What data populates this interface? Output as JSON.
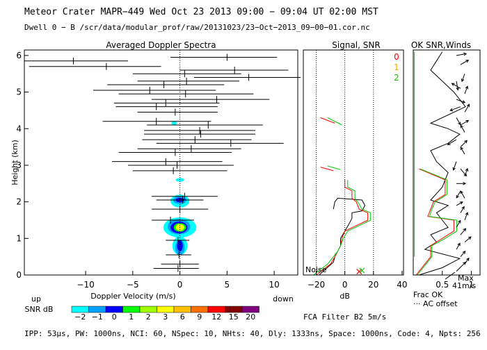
{
  "header": {
    "line1": "Meteor Crater  MAPR−449  Wed Oct 23 2013 09:00 − 09:04 UT 02:00 MST",
    "line2": "Dwell  0 −  B   /scr/data/modular_prof/raw/20131023/23−Oct−2013_09−00−01.cor.nc"
  },
  "footer": {
    "params": "IPP: 53μs, PW: 1000ns, NCI: 60, NSpec: 10, NHts: 40, Dly: 1333ns, Space: 1000ns, Code: 4, Npts: 256",
    "filter": "FCA Filter B2  5m/s"
  },
  "snr_legend": {
    "label_up": "up",
    "label_snr": "SNR dB",
    "label_down": "down",
    "levels": [
      {
        "value": "−2",
        "color": "#00ffff"
      },
      {
        "value": "−1",
        "color": "#00a0ff"
      },
      {
        "value": "0",
        "color": "#0000ff"
      },
      {
        "value": "1",
        "color": "#00ff00"
      },
      {
        "value": "2",
        "color": "#a0ff00"
      },
      {
        "value": "3",
        "color": "#ffff00"
      },
      {
        "value": "6",
        "color": "#ffc000"
      },
      {
        "value": "9",
        "color": "#ff7000"
      },
      {
        "value": "12",
        "color": "#ff0000"
      },
      {
        "value": "15",
        "color": "#800000"
      },
      {
        "value": "20",
        "color": "#800080"
      }
    ]
  },
  "chart_data": [
    {
      "type": "heatmap",
      "title": "Averaged Doppler Spectra",
      "xlabel": "Doppler Velocity (m/s)",
      "ylabel": "Height (km)",
      "xlim": [
        -16.5,
        12.5
      ],
      "ylim": [
        0,
        6.15
      ],
      "xticks": [
        -10,
        -5,
        0,
        5,
        10
      ],
      "yticks": [
        0,
        1,
        2,
        3,
        4,
        5,
        6
      ],
      "vertical_lines": [
        0
      ],
      "velocity_bars": [
        {
          "h": 5.95,
          "center": 5.0,
          "lo": -1.0,
          "hi": 10.3
        },
        {
          "h": 5.85,
          "center": -11.3,
          "lo": -16.5,
          "hi": -5.5
        },
        {
          "h": 5.7,
          "center": -7.8,
          "lo": -16.0,
          "hi": -2.0
        },
        {
          "h": 5.6,
          "center": 5.8,
          "lo": 0.0,
          "hi": 11.5
        },
        {
          "h": 5.5,
          "center": 0.5,
          "lo": -5.0,
          "hi": 6.5
        },
        {
          "h": 5.4,
          "center": 7.3,
          "lo": 1.5,
          "hi": 12.8
        },
        {
          "h": 5.3,
          "center": 0.7,
          "lo": -4.5,
          "hi": 6.3
        },
        {
          "h": 5.2,
          "center": -1.7,
          "lo": -7.7,
          "hi": 4.7
        },
        {
          "h": 5.05,
          "center": -3.2,
          "lo": -9.2,
          "hi": 3.8
        },
        {
          "h": 4.95,
          "center": 0.6,
          "lo": -6.5,
          "hi": 7.8
        },
        {
          "h": 4.8,
          "center": 3.9,
          "lo": -3.0,
          "hi": 9.5
        },
        {
          "h": 4.7,
          "center": -1.5,
          "lo": -7.0,
          "hi": 4.2
        },
        {
          "h": 4.6,
          "center": -2.5,
          "lo": -6.8,
          "hi": 4.0
        },
        {
          "h": 4.45,
          "center": -0.5,
          "lo": -4.5,
          "hi": 4.0
        },
        {
          "h": 4.2,
          "center": -2.5,
          "lo": -8.2,
          "hi": 3.3
        },
        {
          "h": 4.1,
          "center": 3.0,
          "lo": -3.5,
          "hi": 8.8
        },
        {
          "h": 3.95,
          "center": 2.1,
          "lo": -3.8,
          "hi": 8.0
        },
        {
          "h": 3.85,
          "center": 2.2,
          "lo": -3.8,
          "hi": 8.0
        },
        {
          "h": 3.7,
          "center": 1.6,
          "lo": -4.0,
          "hi": 7.6
        },
        {
          "h": 3.6,
          "center": 5.4,
          "lo": -2.5,
          "hi": 11.0
        },
        {
          "h": 3.45,
          "center": 1.2,
          "lo": -4.5,
          "hi": 6.5
        },
        {
          "h": 3.35,
          "center": -0.5,
          "lo": -6.5,
          "hi": 5.5
        },
        {
          "h": 3.1,
          "center": -1.5,
          "lo": -7.2,
          "hi": 4.5
        },
        {
          "h": 3.0,
          "center": -0.3,
          "lo": -5.5,
          "hi": 5.7
        },
        {
          "h": 2.85,
          "center": -0.7,
          "lo": -5.0,
          "hi": 5.0
        },
        {
          "h": 2.15,
          "center": 0.5,
          "lo": -3.0,
          "hi": 4.0
        },
        {
          "h": 2.05,
          "center": 0.3,
          "lo": -2.5,
          "hi": 2.5
        },
        {
          "h": 1.8,
          "center": 0.0,
          "lo": -3.0,
          "hi": 3.0
        },
        {
          "h": 1.5,
          "center": -1.0,
          "lo": -3.0,
          "hi": 1.5
        },
        {
          "h": 0.95,
          "center": -0.2,
          "lo": -1.5,
          "hi": 1.0
        },
        {
          "h": 0.55,
          "center": -0.1,
          "lo": -1.5,
          "hi": 1.2
        },
        {
          "h": 0.3,
          "center": 0.0,
          "lo": -2.0,
          "hi": 2.0
        },
        {
          "h": 0.18,
          "center": -0.2,
          "lo": -2.8,
          "hi": 2.0
        }
      ],
      "snr_blobs": [
        {
          "v": 0.0,
          "h": 1.3,
          "dv": 3.5,
          "dh": 0.55,
          "level": "-2"
        },
        {
          "v": -0.1,
          "h": 1.32,
          "dv": 2.4,
          "dh": 0.42,
          "level": "-1"
        },
        {
          "v": -0.1,
          "h": 1.3,
          "dv": 1.8,
          "dh": 0.32,
          "level": "0"
        },
        {
          "v": 0.0,
          "h": 1.3,
          "dv": 1.3,
          "dh": 0.24,
          "level": "1"
        },
        {
          "v": 0.0,
          "h": 1.3,
          "dv": 0.9,
          "dh": 0.18,
          "level": "3"
        },
        {
          "v": 0.0,
          "h": 2.02,
          "dv": 2.0,
          "dh": 0.35,
          "level": "-2"
        },
        {
          "v": 0.0,
          "h": 2.05,
          "dv": 1.4,
          "dh": 0.22,
          "level": "-1"
        },
        {
          "v": 0.0,
          "h": 2.05,
          "dv": 0.9,
          "dh": 0.12,
          "level": "0"
        },
        {
          "v": 0.0,
          "h": 0.8,
          "dv": 1.6,
          "dh": 0.5,
          "level": "-2"
        },
        {
          "v": 0.0,
          "h": 0.75,
          "dv": 1.0,
          "dh": 0.42,
          "level": "-1"
        },
        {
          "v": 0.0,
          "h": 0.8,
          "dv": 0.6,
          "dh": 0.3,
          "level": "0"
        },
        {
          "v": 0.0,
          "h": 2.6,
          "dv": 0.9,
          "dh": 0.1,
          "level": "-2"
        },
        {
          "v": -0.6,
          "h": 4.15,
          "dv": 0.6,
          "dh": 0.1,
          "level": "-2"
        }
      ]
    },
    {
      "type": "line",
      "title": "Signal, SNR",
      "xlabel": "dB",
      "xlim": [
        -29,
        41
      ],
      "ylim": [
        0,
        6.15
      ],
      "xticks": [
        -20,
        0,
        20,
        40
      ],
      "dotted_lines": [
        -20,
        0,
        20
      ],
      "noise_label": "Noise",
      "series": [
        {
          "name": "black",
          "color": "#000000",
          "x": [
            -18,
            -8,
            -7,
            -3,
            -3,
            0,
            3,
            5,
            5,
            12,
            14,
            12,
            -5,
            -7,
            -8
          ],
          "h": [
            0.0,
            0.35,
            0.5,
            0.8,
            1.0,
            1.2,
            1.4,
            1.55,
            1.7,
            1.75,
            1.9,
            2.05,
            2.1,
            2.0,
            1.8
          ]
        },
        {
          "name": "red",
          "color": "#ff0000",
          "x": [
            -20,
            -10,
            -7,
            -5,
            -3,
            -2,
            0,
            8,
            16,
            16,
            10,
            8,
            5,
            5,
            0,
            0
          ],
          "h": [
            0.0,
            0.3,
            0.5,
            0.65,
            0.8,
            1.0,
            1.2,
            1.35,
            1.5,
            1.7,
            1.8,
            2.0,
            2.1,
            2.3,
            2.4,
            2.6
          ]
        },
        {
          "name": "green",
          "color": "#00cc00",
          "x": [
            -22,
            -12,
            -8,
            -5,
            -3,
            -1,
            2,
            10,
            18,
            18,
            12,
            9,
            7,
            7,
            2,
            2
          ],
          "h": [
            0.0,
            0.3,
            0.5,
            0.65,
            0.8,
            1.0,
            1.2,
            1.35,
            1.5,
            1.7,
            1.8,
            2.0,
            2.1,
            2.3,
            2.4,
            2.6
          ]
        },
        {
          "name": "seg-red-4",
          "color": "#ff0000",
          "x": [
            -17,
            -7
          ],
          "h": [
            4.3,
            4.15
          ]
        },
        {
          "name": "seg-green-4",
          "color": "#00cc00",
          "x": [
            -12,
            -2
          ],
          "h": [
            4.3,
            4.1
          ]
        },
        {
          "name": "seg-red-3",
          "color": "#ff0000",
          "x": [
            -17,
            -8
          ],
          "h": [
            2.95,
            2.85
          ]
        },
        {
          "name": "seg-green-3",
          "color": "#00cc00",
          "x": [
            -12,
            -3
          ],
          "h": [
            2.98,
            2.88
          ]
        }
      ],
      "markers": [
        {
          "x": 10,
          "h": 0.05,
          "color": "#ff0000",
          "label": "×"
        },
        {
          "x": 12,
          "h": 0.08,
          "color": "#00cc00",
          "label": "×"
        }
      ]
    },
    {
      "type": "line",
      "title": "OK SNR,Winds",
      "xlabel": "Frac OK",
      "xlim": [
        0,
        1.15
      ],
      "ylim": [
        0,
        6.15
      ],
      "xticks": [
        0.5,
        1
      ],
      "xticklabels": [
        "0.5",
        "1"
      ],
      "legend": [
        {
          "label": "0",
          "color": "#ff0000"
        },
        {
          "label": "1",
          "color": "#ffa500"
        },
        {
          "label": "2",
          "color": "#00cc00"
        }
      ],
      "ac_offset_label": "··· AC offset",
      "max_label": "Max",
      "max_value_label": "41m/s",
      "series": [
        {
          "name": "frac-ok",
          "color": "#000000",
          "x": [
            0.1,
            0.5,
            0.8,
            0.2,
            0.4,
            0.3,
            0.6,
            0.5,
            0.4,
            0.6,
            0.3,
            0.5,
            0.6,
            0.4,
            0.3,
            0.6,
            0.8,
            0.6,
            0.3,
            0.9,
            0.7,
            0.5,
            0.3,
            0.4,
            0.5
          ],
          "h": [
            0.0,
            0.2,
            0.45,
            0.7,
            0.9,
            1.1,
            1.3,
            1.5,
            1.7,
            1.9,
            2.05,
            2.4,
            2.8,
            3.1,
            3.4,
            3.6,
            3.85,
            4.0,
            4.15,
            4.6,
            5.0,
            5.3,
            5.6,
            5.85,
            6.1
          ]
        },
        {
          "name": "frac-0",
          "color": "#ff0000",
          "x": [
            0.05,
            0.2,
            0.3,
            0.3,
            0.5,
            0.7,
            0.7,
            0.25,
            0.3,
            0.35,
            0.55,
            0.55,
            0.1
          ],
          "h": [
            0.0,
            0.3,
            0.5,
            0.8,
            1.0,
            1.2,
            1.5,
            1.6,
            1.8,
            2.0,
            2.2,
            2.6,
            2.9
          ]
        },
        {
          "name": "frac-2",
          "color": "#00cc00",
          "x": [
            0.07,
            0.22,
            0.32,
            0.32,
            0.55,
            0.75,
            0.75,
            0.28,
            0.32,
            0.38,
            0.58,
            0.58,
            0.12
          ],
          "h": [
            0.0,
            0.3,
            0.5,
            0.8,
            1.0,
            1.2,
            1.5,
            1.6,
            1.8,
            2.0,
            2.2,
            2.6,
            2.9
          ]
        }
      ],
      "green_baseline": {
        "x": 0.02,
        "h": [
          0.5,
          6.1
        ]
      },
      "wind_barbs": [
        {
          "h": 6.0,
          "dir": 80,
          "len": 0.6
        },
        {
          "h": 5.75,
          "dir": 60,
          "len": 0.5
        },
        {
          "h": 5.5,
          "dir": 200,
          "len": 0.4
        },
        {
          "h": 5.3,
          "dir": 170,
          "len": 0.5
        },
        {
          "h": 5.1,
          "dir": 300,
          "len": 0.6
        },
        {
          "h": 4.95,
          "dir": 20,
          "len": 0.4
        },
        {
          "h": 4.8,
          "dir": 110,
          "len": 0.5
        },
        {
          "h": 4.6,
          "dir": 250,
          "len": 0.7
        },
        {
          "h": 4.45,
          "dir": 30,
          "len": 0.5
        },
        {
          "h": 4.3,
          "dir": 150,
          "len": 0.4
        },
        {
          "h": 4.1,
          "dir": 60,
          "len": 0.5
        },
        {
          "h": 3.9,
          "dir": 330,
          "len": 0.4
        },
        {
          "h": 3.7,
          "dir": 240,
          "len": 0.6
        },
        {
          "h": 3.5,
          "dir": 45,
          "len": 0.5
        },
        {
          "h": 3.3,
          "dir": 330,
          "len": 0.4
        },
        {
          "h": 3.1,
          "dir": 200,
          "len": 0.5
        },
        {
          "h": 2.9,
          "dir": 140,
          "len": 0.5
        },
        {
          "h": 2.7,
          "dir": 20,
          "len": 0.4
        },
        {
          "h": 2.5,
          "dir": 90,
          "len": 0.5
        },
        {
          "h": 2.3,
          "dir": 210,
          "len": 0.4
        },
        {
          "h": 2.1,
          "dir": 330,
          "len": 0.4
        },
        {
          "h": 1.9,
          "dir": 60,
          "len": 0.3
        },
        {
          "h": 1.7,
          "dir": 30,
          "len": 0.3
        },
        {
          "h": 1.5,
          "dir": 20,
          "len": 0.4
        },
        {
          "h": 1.3,
          "dir": 30,
          "len": 0.4
        },
        {
          "h": 1.1,
          "dir": 40,
          "len": 0.4
        },
        {
          "h": 0.9,
          "dir": 50,
          "len": 0.4
        },
        {
          "h": 0.7,
          "dir": 30,
          "len": 0.3
        },
        {
          "h": 0.5,
          "dir": 40,
          "len": 0.3
        },
        {
          "h": 0.3,
          "dir": 35,
          "len": 0.3
        },
        {
          "h": 0.1,
          "dir": 45,
          "len": 0.9
        }
      ]
    }
  ]
}
